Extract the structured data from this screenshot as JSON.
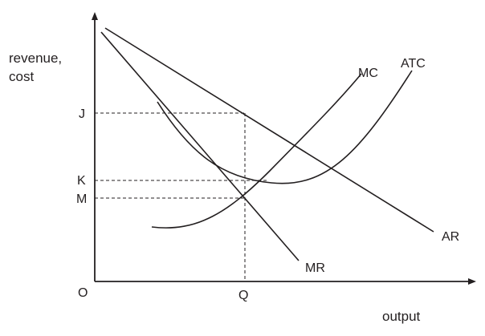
{
  "diagram": {
    "y_axis_label": [
      "revenue,",
      "cost"
    ],
    "x_axis_label": "output",
    "origin_label": "O",
    "price_labels": {
      "j": "J",
      "k": "K",
      "m": "M"
    },
    "quantity_label": "Q",
    "curves": {
      "mc": "MC",
      "atc": "ATC",
      "ar": "AR",
      "mr": "MR"
    }
  }
}
